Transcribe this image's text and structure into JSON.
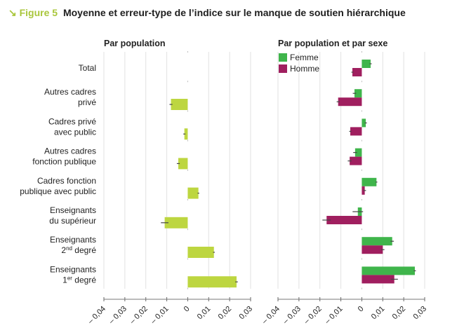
{
  "title": {
    "figure_label": "↘ Figure 5",
    "text": "Moyenne et erreur-type de l’indice sur le manque de soutien hiérarchique"
  },
  "colors": {
    "accent": "#a9c63b",
    "population": "#bdd640",
    "femme": "#3fb54b",
    "homme": "#a01f5f",
    "error": "#444444",
    "grid": "#e2e2e2"
  },
  "chart_data": [
    {
      "type": "bar",
      "orientation": "horizontal",
      "title": "Par population",
      "categories": [
        [
          "Total"
        ],
        [
          "Autres cadres",
          "privé"
        ],
        [
          "Cadres privé",
          "avec public"
        ],
        [
          "Autres cadres",
          "fonction publique"
        ],
        [
          "Cadres fonction",
          "publique avec public"
        ],
        [
          "Enseignants",
          "du supérieur"
        ],
        [
          "Enseignants",
          "2nd degré"
        ],
        [
          "Enseignants",
          "1er degré"
        ]
      ],
      "values": [
        0,
        -0.008,
        -0.0016,
        -0.0045,
        0.0051,
        -0.011,
        0.0125,
        0.0233
      ],
      "errors": [
        0,
        0.0007,
        0.0005,
        0.0007,
        0.0004,
        0.0018,
        0.0004,
        0.0006
      ],
      "xlim": [
        -0.04,
        0.03
      ],
      "ticks": [
        "– 0,04",
        "– 0,03",
        "– 0,02",
        "– 0,01",
        "0",
        "0,01",
        "0,02",
        "0,03"
      ],
      "grid": true
    },
    {
      "type": "bar",
      "orientation": "horizontal",
      "title": "Par population et par sexe",
      "legend_placement": "top-left",
      "series": [
        {
          "name": "Femme",
          "values": [
            0.0042,
            -0.0035,
            0.0019,
            -0.0032,
            0.007,
            -0.0019,
            0.0145,
            0.0253
          ],
          "errors": [
            0.0005,
            0.0008,
            0.0005,
            0.0009,
            0.0004,
            0.0025,
            0.0008,
            0.0005
          ]
        },
        {
          "name": "Homme",
          "values": [
            -0.0045,
            -0.0113,
            -0.0055,
            -0.0058,
            0.0014,
            -0.0168,
            0.01,
            0.0155
          ],
          "errors": [
            0.0005,
            0.0007,
            0.0005,
            0.0009,
            0.0006,
            0.002,
            0.0008,
            0.0017
          ]
        }
      ],
      "xlim": [
        -0.04,
        0.03
      ],
      "ticks": [
        "– 0,04",
        "– 0,03",
        "– 0,02",
        "– 0,01",
        "0",
        "0,01",
        "0,02",
        "0,03"
      ],
      "grid": true
    }
  ]
}
